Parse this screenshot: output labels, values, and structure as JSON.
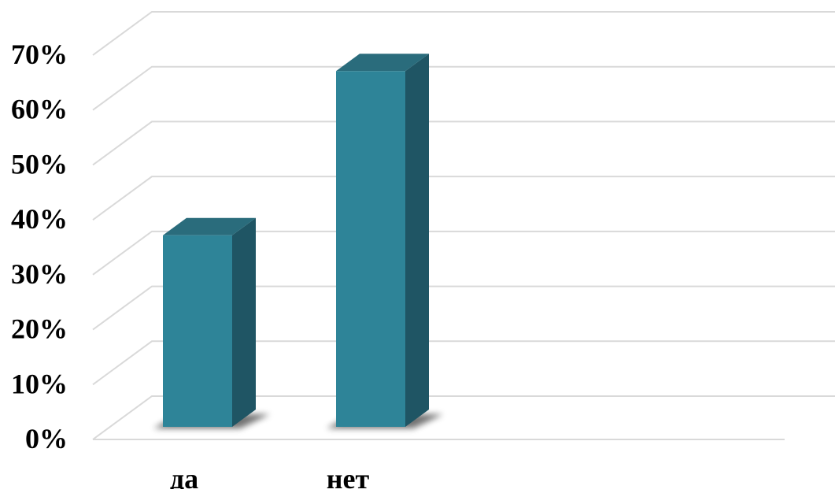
{
  "chart_data": {
    "type": "bar",
    "categories": [
      "да",
      "нет"
    ],
    "values": [
      35,
      65
    ],
    "ylim": [
      0,
      70
    ],
    "yticks": [
      "0%",
      "10%",
      "20%",
      "30%",
      "40%",
      "50%",
      "60%",
      "70%"
    ],
    "grid": true,
    "style": "3d-column",
    "title": "",
    "xlabel": "",
    "ylabel": ""
  },
  "colors": {
    "bar_front": "#2e8498",
    "bar_side": "#1f5564",
    "bar_top": "#2a6c7c",
    "grid": "#d9d9d9",
    "shadow": "#000000"
  }
}
